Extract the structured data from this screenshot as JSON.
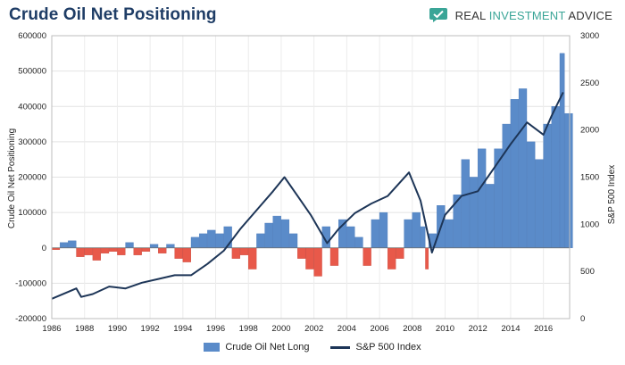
{
  "header": {
    "title": "Crude Oil Net Positioning",
    "brand_prefix": "REAL ",
    "brand_highlight": "INVESTMENT",
    "brand_suffix": " ADVICE",
    "brand_icon": "chat-bubble-check-icon",
    "brand_color": "#3aa597"
  },
  "chart_data": {
    "type": "bar+line",
    "title": "Crude Oil Net Positioning",
    "ylabel_left": "Crude Oil Net Positioning",
    "ylabel_right": "S&P 500 Index",
    "ylim_left": [
      -200000,
      600000
    ],
    "ylim_right": [
      0,
      3000
    ],
    "xlim": [
      1986,
      2017.6
    ],
    "x_ticks": [
      1986,
      1988,
      1990,
      1992,
      1994,
      1996,
      1998,
      2000,
      2002,
      2004,
      2006,
      2008,
      2010,
      2012,
      2014,
      2016
    ],
    "y_ticks_left": [
      -200000,
      -100000,
      0,
      100000,
      200000,
      300000,
      400000,
      500000,
      600000
    ],
    "y_ticks_right": [
      0,
      500,
      1000,
      1500,
      2000,
      2500,
      3000
    ],
    "positive_color": "#5a8bc9",
    "negative_color": "#e8594a",
    "line_color": "#1d3557",
    "grid": true,
    "legend_position": "bottom",
    "series": [
      {
        "name": "Crude Oil Net Long",
        "kind": "bar",
        "axis": "left",
        "points": [
          [
            1986.0,
            -5000
          ],
          [
            1986.5,
            15000
          ],
          [
            1987.0,
            20000
          ],
          [
            1987.5,
            -25000
          ],
          [
            1988.0,
            -20000
          ],
          [
            1988.5,
            -35000
          ],
          [
            1989.0,
            -15000
          ],
          [
            1989.5,
            -10000
          ],
          [
            1990.0,
            -20000
          ],
          [
            1990.5,
            15000
          ],
          [
            1991.0,
            -20000
          ],
          [
            1991.5,
            -10000
          ],
          [
            1992.0,
            10000
          ],
          [
            1992.5,
            -15000
          ],
          [
            1993.0,
            10000
          ],
          [
            1993.5,
            -30000
          ],
          [
            1994.0,
            -40000
          ],
          [
            1994.5,
            30000
          ],
          [
            1995.0,
            40000
          ],
          [
            1995.5,
            50000
          ],
          [
            1996.0,
            40000
          ],
          [
            1996.5,
            60000
          ],
          [
            1997.0,
            -30000
          ],
          [
            1997.5,
            -20000
          ],
          [
            1998.0,
            -60000
          ],
          [
            1998.5,
            40000
          ],
          [
            1999.0,
            70000
          ],
          [
            1999.5,
            90000
          ],
          [
            2000.0,
            80000
          ],
          [
            2000.5,
            40000
          ],
          [
            2001.0,
            -30000
          ],
          [
            2001.5,
            -60000
          ],
          [
            2002.0,
            -80000
          ],
          [
            2002.5,
            60000
          ],
          [
            2003.0,
            -50000
          ],
          [
            2003.5,
            80000
          ],
          [
            2004.0,
            60000
          ],
          [
            2004.5,
            30000
          ],
          [
            2005.0,
            -50000
          ],
          [
            2005.5,
            80000
          ],
          [
            2006.0,
            100000
          ],
          [
            2006.5,
            -60000
          ],
          [
            2007.0,
            -30000
          ],
          [
            2007.5,
            80000
          ],
          [
            2008.0,
            100000
          ],
          [
            2008.5,
            60000
          ],
          [
            2008.8,
            -60000
          ],
          [
            2009.0,
            40000
          ],
          [
            2009.5,
            120000
          ],
          [
            2010.0,
            80000
          ],
          [
            2010.5,
            150000
          ],
          [
            2011.0,
            250000
          ],
          [
            2011.5,
            200000
          ],
          [
            2012.0,
            280000
          ],
          [
            2012.5,
            180000
          ],
          [
            2013.0,
            280000
          ],
          [
            2013.5,
            350000
          ],
          [
            2014.0,
            420000
          ],
          [
            2014.5,
            450000
          ],
          [
            2015.0,
            300000
          ],
          [
            2015.5,
            250000
          ],
          [
            2016.0,
            350000
          ],
          [
            2016.5,
            400000
          ],
          [
            2017.0,
            550000
          ],
          [
            2017.3,
            380000
          ]
        ]
      },
      {
        "name": "S&P 500 Index",
        "kind": "line",
        "axis": "right",
        "points": [
          [
            1986.0,
            210
          ],
          [
            1987.5,
            320
          ],
          [
            1987.8,
            230
          ],
          [
            1988.5,
            260
          ],
          [
            1989.5,
            340
          ],
          [
            1990.5,
            320
          ],
          [
            1991.5,
            380
          ],
          [
            1992.5,
            420
          ],
          [
            1993.5,
            460
          ],
          [
            1994.5,
            460
          ],
          [
            1995.5,
            580
          ],
          [
            1996.5,
            720
          ],
          [
            1997.5,
            950
          ],
          [
            1998.5,
            1150
          ],
          [
            1999.5,
            1350
          ],
          [
            2000.2,
            1500
          ],
          [
            2001.0,
            1300
          ],
          [
            2001.8,
            1100
          ],
          [
            2002.8,
            800
          ],
          [
            2003.5,
            950
          ],
          [
            2004.5,
            1120
          ],
          [
            2005.5,
            1220
          ],
          [
            2006.5,
            1300
          ],
          [
            2007.8,
            1550
          ],
          [
            2008.5,
            1250
          ],
          [
            2009.2,
            700
          ],
          [
            2010.0,
            1100
          ],
          [
            2011.0,
            1300
          ],
          [
            2012.0,
            1350
          ],
          [
            2013.0,
            1600
          ],
          [
            2014.0,
            1850
          ],
          [
            2015.0,
            2080
          ],
          [
            2016.0,
            1950
          ],
          [
            2016.5,
            2150
          ],
          [
            2017.2,
            2400
          ]
        ]
      }
    ]
  }
}
